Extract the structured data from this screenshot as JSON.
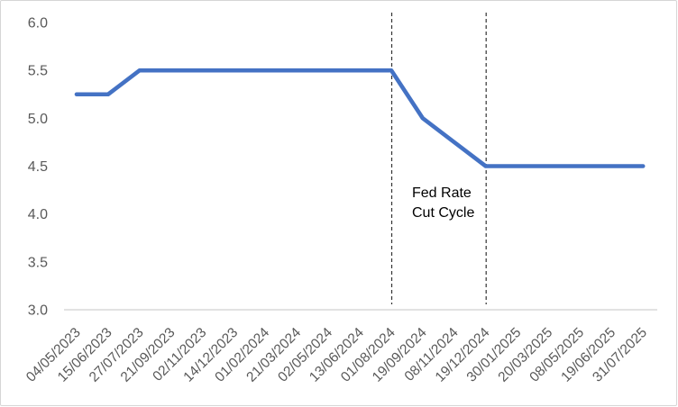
{
  "chart_data": {
    "type": "line",
    "title": "",
    "xlabel": "",
    "ylabel": "",
    "categories": [
      "04/05/2023",
      "15/06/2023",
      "27/07/2023",
      "21/09/2023",
      "02/11/2023",
      "14/12/2023",
      "01/02/2024",
      "21/03/2024",
      "02/05/2024",
      "13/06/2024",
      "01/08/2024",
      "19/09/2024",
      "08/11/2024",
      "19/12/2024",
      "30/01/2025",
      "20/03/2025",
      "08/05/2025",
      "19/06/2025",
      "31/07/2025"
    ],
    "values": [
      5.25,
      5.25,
      5.5,
      5.5,
      5.5,
      5.5,
      5.5,
      5.5,
      5.5,
      5.5,
      5.5,
      5.0,
      4.75,
      4.5,
      4.5,
      4.5,
      4.5,
      4.5,
      4.5
    ],
    "ylim": [
      3.0,
      6.0
    ],
    "y_tick_labels": [
      "3.0",
      "3.5",
      "4.0",
      "4.5",
      "5.0",
      "5.5",
      "6.0"
    ],
    "y_tick_values": [
      3.0,
      3.5,
      4.0,
      4.5,
      5.0,
      5.5,
      6.0
    ],
    "grid": false,
    "legend_position": "none",
    "line_color": "#4472C4",
    "axis_line_color": "#D9D9D9",
    "tick_label_color": "#595959",
    "vline_color": "#333333",
    "vlines": [
      {
        "category": "01/08/2024"
      },
      {
        "category": "19/12/2024"
      }
    ],
    "annotation": {
      "lines": [
        "Fed Rate",
        "Cut Cycle"
      ],
      "color": "#000000"
    }
  }
}
